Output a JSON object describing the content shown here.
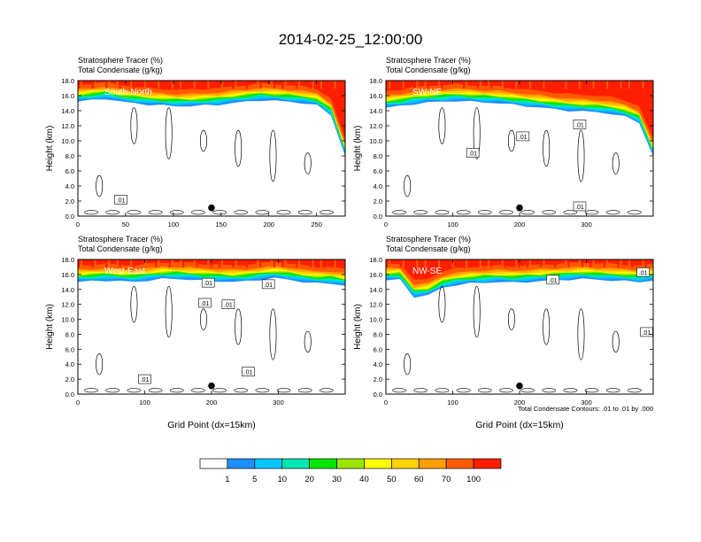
{
  "title": "2014-02-25_12:00:00",
  "chart_data": [
    {
      "type": "heatmap",
      "subtitle1": "Stratosphere Tracer   (%)",
      "subtitle2": "Total Condensate   (g/kg)",
      "panel_label": "South-North",
      "ylabel": "Height (km)",
      "xlabel": "",
      "xlim": [
        0,
        280
      ],
      "ylim": [
        0,
        18
      ],
      "xticks": [
        0,
        50,
        100,
        150,
        200,
        250
      ],
      "yticks": [
        "0.0",
        "2.0",
        "4.0",
        "6.0",
        "8.0",
        "10.0",
        "12.0",
        "14.0",
        "16.0",
        "18.0"
      ],
      "tropopause_km": [
        15.2,
        15.4,
        15.6,
        15.2,
        15.0,
        14.8,
        14.7,
        14.6,
        14.6,
        14.7,
        14.8,
        15.0,
        15.2,
        15.4,
        15.3,
        15.2,
        15.0,
        14.7,
        13.4,
        8.0
      ],
      "marker": {
        "x": 140,
        "y": 1.1
      },
      "contour_labels": [
        {
          "text": ".01",
          "x": 45,
          "y": 2.2
        }
      ]
    },
    {
      "type": "heatmap",
      "subtitle1": "Stratosphere Tracer   (%)",
      "subtitle2": "Total Condensate   (g/kg)",
      "panel_label": "SW-NE",
      "ylabel": "Height (km)",
      "xlabel": "",
      "xlim": [
        0,
        400
      ],
      "ylim": [
        0,
        18
      ],
      "xticks": [
        0,
        100,
        200,
        300
      ],
      "yticks": [
        "0.0",
        "2.0",
        "4.0",
        "6.0",
        "8.0",
        "10.0",
        "12.0",
        "14.0",
        "16.0",
        "18.0"
      ],
      "tropopause_km": [
        14.4,
        14.6,
        14.9,
        15.1,
        15.2,
        15.3,
        15.2,
        15.1,
        15.0,
        14.8,
        14.6,
        14.4,
        14.2,
        14.0,
        13.9,
        13.8,
        13.6,
        13.2,
        12.4,
        8.0
      ],
      "marker": {
        "x": 200,
        "y": 1.1
      },
      "contour_labels": [
        {
          "text": ".01",
          "x": 205,
          "y": 10.6
        },
        {
          "text": ".01",
          "x": 130,
          "y": 8.4
        },
        {
          "text": ".01",
          "x": 290,
          "y": 12.2
        },
        {
          "text": ".01",
          "x": 290,
          "y": 1.3
        }
      ]
    },
    {
      "type": "heatmap",
      "subtitle1": "Stratosphere Tracer   (%)",
      "subtitle2": "Total Condensate   (g/kg)",
      "panel_label": "West-East",
      "ylabel": "Height (km)",
      "xlabel": "Grid Point (dx=15km)",
      "xlim": [
        0,
        400
      ],
      "ylim": [
        0,
        18
      ],
      "xticks": [
        0,
        100,
        200,
        300
      ],
      "yticks": [
        "0.0",
        "2.0",
        "4.0",
        "6.0",
        "8.0",
        "10.0",
        "12.0",
        "14.0",
        "16.0",
        "18.0"
      ],
      "tropopause_km": [
        15.0,
        15.1,
        15.2,
        15.1,
        15.0,
        15.2,
        15.4,
        15.4,
        15.3,
        15.2,
        15.1,
        15.0,
        15.1,
        15.3,
        15.5,
        15.3,
        15.0,
        14.8,
        14.8,
        14.5
      ],
      "marker": {
        "x": 200,
        "y": 1.1
      },
      "contour_labels": [
        {
          "text": ".01",
          "x": 195,
          "y": 14.9
        },
        {
          "text": ".01",
          "x": 285,
          "y": 14.7
        },
        {
          "text": ".01",
          "x": 190,
          "y": 12.2
        },
        {
          "text": ".01",
          "x": 225,
          "y": 12.0
        },
        {
          "text": ".01",
          "x": 255,
          "y": 3.0
        },
        {
          "text": ".01",
          "x": 100,
          "y": 2.0
        }
      ]
    },
    {
      "type": "heatmap",
      "subtitle1": "Stratosphere Tracer   (%)",
      "subtitle2": "Total Condensate   (g/kg)",
      "panel_label": "NW-SE",
      "ylabel": "Height (km)",
      "xlabel": "Grid Point (dx=15km)",
      "xlim": [
        0,
        400
      ],
      "ylim": [
        0,
        18
      ],
      "xticks": [
        0,
        100,
        200,
        300
      ],
      "yticks": [
        "0.0",
        "2.0",
        "4.0",
        "6.0",
        "8.0",
        "10.0",
        "12.0",
        "14.0",
        "16.0",
        "18.0"
      ],
      "tropopause_km": [
        15.2,
        15.3,
        13.0,
        13.2,
        14.2,
        14.6,
        14.8,
        14.9,
        15.0,
        14.9,
        15.0,
        15.1,
        15.2,
        15.3,
        15.4,
        15.3,
        15.2,
        15.1,
        15.0,
        15.2
      ],
      "marker": {
        "x": 200,
        "y": 1.1
      },
      "contour_labels": [
        {
          "text": ".01",
          "x": 250,
          "y": 15.3
        },
        {
          "text": ".01",
          "x": 385,
          "y": 16.3
        },
        {
          "text": ".01",
          "x": 390,
          "y": 8.3
        }
      ],
      "footnote": "Total Condensate Contours: .01 to .01 by .000"
    }
  ],
  "colorbar": {
    "levels": [
      "1",
      "5",
      "10",
      "20",
      "30",
      "40",
      "50",
      "60",
      "70",
      "100"
    ],
    "colors": [
      "#ffffff",
      "#1e90ff",
      "#00c8ff",
      "#00e6b4",
      "#00e600",
      "#9be600",
      "#ffff00",
      "#ffd200",
      "#ffa000",
      "#ff5a00",
      "#ff1e00"
    ]
  }
}
